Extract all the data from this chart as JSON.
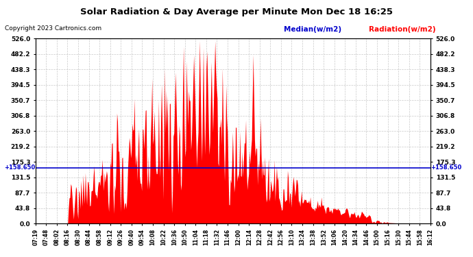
{
  "title": "Solar Radiation & Day Average per Minute Mon Dec 18 16:25",
  "copyright": "Copyright 2023 Cartronics.com",
  "median_label": "Median(w/m2)",
  "radiation_label": "Radiation(w/m2)",
  "median_value": 158.65,
  "median_annotation": "+158.650",
  "ymin": 0.0,
  "ymax": 526.0,
  "yticks": [
    0.0,
    43.8,
    87.7,
    131.5,
    175.3,
    219.2,
    263.0,
    306.8,
    350.7,
    394.5,
    438.3,
    482.2,
    526.0
  ],
  "ytick_labels": [
    "0.0",
    "43.8",
    "87.7",
    "131.5",
    "175.3",
    "219.2",
    "263.0",
    "306.8",
    "350.7",
    "394.5",
    "438.3",
    "482.2",
    "526.0"
  ],
  "xtick_labels": [
    "07:19",
    "07:48",
    "08:02",
    "08:16",
    "08:30",
    "08:44",
    "08:58",
    "09:12",
    "09:26",
    "09:40",
    "09:54",
    "10:08",
    "10:22",
    "10:36",
    "10:50",
    "11:04",
    "11:18",
    "11:32",
    "11:46",
    "12:00",
    "12:14",
    "12:28",
    "12:42",
    "12:56",
    "13:10",
    "13:24",
    "13:38",
    "13:52",
    "14:06",
    "14:20",
    "14:34",
    "14:46",
    "15:00",
    "15:16",
    "15:30",
    "15:44",
    "15:58",
    "16:12"
  ],
  "background_color": "#ffffff",
  "fill_color": "#ff0000",
  "median_line_color": "#0000cc",
  "title_color": "#000000",
  "median_label_color": "#0000cc",
  "radiation_label_color": "#ff0000",
  "copyright_color": "#000000",
  "median_annotation_color": "#0000cc",
  "grid_color": "#bbbbbb"
}
